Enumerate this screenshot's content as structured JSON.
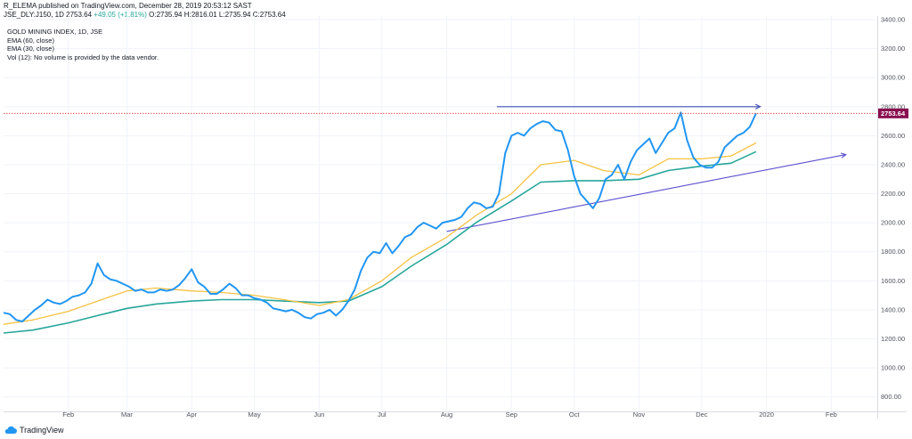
{
  "header": {
    "publish_line": "R_ELEMA published on TradingView.com, December 28, 2019 20:53:12 SAST",
    "symbol": "JSE_DLY:J150, 1D",
    "last": "2753.64",
    "change": "+49.05 (+1.81%)",
    "open_label": "O:",
    "open": "2735.94",
    "high_label": "H:",
    "high": "2816.01",
    "low_label": "L:",
    "low": "2735.94",
    "close_label": "C:",
    "close": "2753.64"
  },
  "legend": {
    "title": "GOLD MINING INDEX, 1D, JSE",
    "ema1": "EMA (60, close)",
    "ema2": "EMA (30, close)",
    "volume": "Vol (12): No volume is provided by the data vendor."
  },
  "footer": {
    "brand": "TradingView",
    "icon": "tradingview-cloud-icon"
  },
  "colors": {
    "price": "#2196f3",
    "ema_yellow": "#f5c242",
    "ema_green": "#26a69a",
    "trendline_top": "#3f51b5",
    "trendline_bottom": "#5b4fcf",
    "last_price_badge": "#880e4f",
    "last_price_line": "#e53935"
  },
  "chart_data": {
    "type": "line",
    "title": "GOLD MINING INDEX, 1D, JSE",
    "ylim": [
      700,
      3400
    ],
    "y_ticks": [
      "3400.00",
      "3200.00",
      "3000.00",
      "2800.00",
      "2600.00",
      "2400.00",
      "2200.00",
      "2000.00",
      "1800.00",
      "1600.00",
      "1400.00",
      "1200.00",
      "1000.00",
      "800.00"
    ],
    "y_tick_values": [
      3400,
      3200,
      3000,
      2800,
      2600,
      2400,
      2200,
      2000,
      1800,
      1600,
      1400,
      1200,
      1000,
      800
    ],
    "x_tick_labels": [
      "Feb",
      "Mar",
      "Apr",
      "May",
      "Jun",
      "Jul",
      "Aug",
      "Sep",
      "Oct",
      "Nov",
      "Dec",
      "2020",
      "Feb"
    ],
    "x_tick_dates": [
      "2019-02-01",
      "2019-03-01",
      "2019-04-01",
      "2019-05-01",
      "2019-06-01",
      "2019-07-01",
      "2019-08-01",
      "2019-09-01",
      "2019-10-01",
      "2019-11-01",
      "2019-12-01",
      "2020-01-01",
      "2020-02-01"
    ],
    "xlim": [
      "2019-01-01",
      "2020-02-23"
    ],
    "last_value_label": "2753.64",
    "last_value": 2753.64,
    "series": [
      {
        "name": "price",
        "x": [
          "2019-01-01",
          "2019-01-04",
          "2019-01-07",
          "2019-01-10",
          "2019-01-13",
          "2019-01-16",
          "2019-01-19",
          "2019-01-22",
          "2019-01-25",
          "2019-01-28",
          "2019-01-31",
          "2019-02-03",
          "2019-02-06",
          "2019-02-09",
          "2019-02-12",
          "2019-02-15",
          "2019-02-18",
          "2019-02-21",
          "2019-02-24",
          "2019-02-27",
          "2019-03-02",
          "2019-03-05",
          "2019-03-08",
          "2019-03-11",
          "2019-03-14",
          "2019-03-17",
          "2019-03-20",
          "2019-03-23",
          "2019-03-26",
          "2019-03-29",
          "2019-04-01",
          "2019-04-04",
          "2019-04-07",
          "2019-04-10",
          "2019-04-13",
          "2019-04-16",
          "2019-04-19",
          "2019-04-22",
          "2019-04-25",
          "2019-04-28",
          "2019-05-01",
          "2019-05-04",
          "2019-05-07",
          "2019-05-10",
          "2019-05-13",
          "2019-05-16",
          "2019-05-19",
          "2019-05-22",
          "2019-05-25",
          "2019-05-28",
          "2019-05-31",
          "2019-06-03",
          "2019-06-06",
          "2019-06-09",
          "2019-06-12",
          "2019-06-15",
          "2019-06-18",
          "2019-06-21",
          "2019-06-24",
          "2019-06-27",
          "2019-06-30",
          "2019-07-03",
          "2019-07-06",
          "2019-07-09",
          "2019-07-12",
          "2019-07-15",
          "2019-07-18",
          "2019-07-21",
          "2019-07-24",
          "2019-07-27",
          "2019-07-30",
          "2019-08-02",
          "2019-08-05",
          "2019-08-08",
          "2019-08-11",
          "2019-08-14",
          "2019-08-17",
          "2019-08-20",
          "2019-08-23",
          "2019-08-26",
          "2019-08-29",
          "2019-09-01",
          "2019-09-04",
          "2019-09-07",
          "2019-09-10",
          "2019-09-13",
          "2019-09-16",
          "2019-09-19",
          "2019-09-22",
          "2019-09-25",
          "2019-09-28",
          "2019-10-01",
          "2019-10-04",
          "2019-10-07",
          "2019-10-10",
          "2019-10-13",
          "2019-10-16",
          "2019-10-19",
          "2019-10-22",
          "2019-10-25",
          "2019-10-28",
          "2019-10-31",
          "2019-11-03",
          "2019-11-06",
          "2019-11-09",
          "2019-11-12",
          "2019-11-15",
          "2019-11-18",
          "2019-11-21",
          "2019-11-24",
          "2019-11-27",
          "2019-11-30",
          "2019-12-03",
          "2019-12-06",
          "2019-12-09",
          "2019-12-12",
          "2019-12-15",
          "2019-12-18",
          "2019-12-21",
          "2019-12-24",
          "2019-12-27"
        ],
        "values": [
          1380,
          1370,
          1330,
          1320,
          1360,
          1400,
          1430,
          1470,
          1450,
          1440,
          1460,
          1490,
          1500,
          1520,
          1580,
          1720,
          1640,
          1610,
          1600,
          1580,
          1560,
          1530,
          1540,
          1520,
          1520,
          1540,
          1530,
          1540,
          1570,
          1620,
          1680,
          1590,
          1560,
          1510,
          1510,
          1540,
          1580,
          1550,
          1500,
          1500,
          1480,
          1470,
          1450,
          1410,
          1400,
          1390,
          1400,
          1380,
          1350,
          1340,
          1370,
          1380,
          1400,
          1360,
          1400,
          1460,
          1540,
          1670,
          1760,
          1800,
          1790,
          1860,
          1790,
          1840,
          1900,
          1920,
          1970,
          2000,
          1980,
          1960,
          2000,
          2010,
          2020,
          2040,
          2100,
          2140,
          2130,
          2100,
          2110,
          2200,
          2480,
          2600,
          2620,
          2600,
          2650,
          2680,
          2700,
          2690,
          2640,
          2630,
          2500,
          2320,
          2200,
          2150,
          2100,
          2170,
          2300,
          2330,
          2400,
          2300,
          2420,
          2500,
          2540,
          2580,
          2480,
          2550,
          2620,
          2650,
          2760,
          2570,
          2450,
          2400,
          2380,
          2380,
          2420,
          2520,
          2560,
          2600,
          2620,
          2660,
          2753.64
        ]
      },
      {
        "name": "ema_yellow",
        "x": [
          "2019-01-01",
          "2019-01-15",
          "2019-02-01",
          "2019-02-15",
          "2019-03-01",
          "2019-03-15",
          "2019-04-01",
          "2019-04-15",
          "2019-05-01",
          "2019-05-15",
          "2019-06-01",
          "2019-06-15",
          "2019-07-01",
          "2019-07-15",
          "2019-08-01",
          "2019-08-15",
          "2019-09-01",
          "2019-09-15",
          "2019-10-01",
          "2019-10-15",
          "2019-11-01",
          "2019-11-15",
          "2019-12-01",
          "2019-12-15",
          "2019-12-27"
        ],
        "values": [
          1300,
          1330,
          1390,
          1460,
          1530,
          1550,
          1530,
          1520,
          1500,
          1470,
          1430,
          1470,
          1600,
          1760,
          1900,
          2050,
          2200,
          2400,
          2430,
          2360,
          2330,
          2440,
          2440,
          2460,
          2550
        ]
      },
      {
        "name": "ema_green",
        "x": [
          "2019-01-01",
          "2019-01-15",
          "2019-02-01",
          "2019-02-15",
          "2019-03-01",
          "2019-03-15",
          "2019-04-01",
          "2019-04-15",
          "2019-05-01",
          "2019-05-15",
          "2019-06-01",
          "2019-06-15",
          "2019-07-01",
          "2019-07-15",
          "2019-08-01",
          "2019-08-15",
          "2019-09-01",
          "2019-09-15",
          "2019-10-01",
          "2019-10-15",
          "2019-11-01",
          "2019-11-15",
          "2019-12-01",
          "2019-12-15",
          "2019-12-27"
        ],
        "values": [
          1240,
          1260,
          1310,
          1360,
          1410,
          1440,
          1460,
          1470,
          1470,
          1460,
          1450,
          1460,
          1560,
          1700,
          1850,
          2000,
          2150,
          2280,
          2290,
          2290,
          2300,
          2360,
          2390,
          2410,
          2490
        ]
      }
    ],
    "trendlines": [
      {
        "name": "resistance",
        "x1": "2019-08-25",
        "y1": 2800,
        "x2": "2019-12-29",
        "y2": 2800
      },
      {
        "name": "support",
        "x1": "2019-08-01",
        "y1": 1940,
        "x2": "2020-02-08",
        "y2": 2470
      }
    ]
  }
}
